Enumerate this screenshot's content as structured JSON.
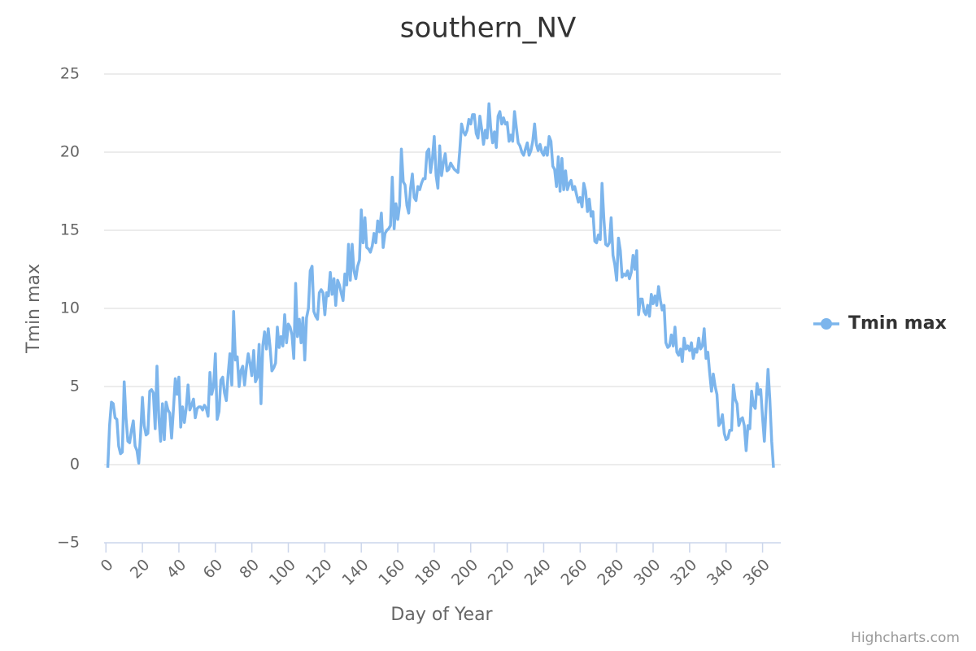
{
  "chart_data": {
    "type": "line",
    "title": "southern_NV",
    "x_label": "Day of Year",
    "y_label": "Tmin max",
    "credits": "Highcharts.com",
    "legend": "right",
    "grid": true,
    "xlim": [
      -1,
      370
    ],
    "xticks": [
      0,
      20,
      40,
      60,
      80,
      100,
      120,
      140,
      160,
      180,
      200,
      220,
      240,
      260,
      280,
      300,
      320,
      340,
      360
    ],
    "ylim": [
      -5,
      25
    ],
    "yticks": [
      {
        "value": -5,
        "label": "−5"
      },
      0,
      5,
      10,
      15,
      20,
      25
    ],
    "x": [
      1,
      2,
      3,
      4,
      5,
      6,
      7,
      8,
      9,
      10,
      11,
      12,
      13,
      14,
      15,
      16,
      17,
      18,
      19,
      20,
      21,
      22,
      23,
      24,
      25,
      26,
      27,
      28,
      29,
      30,
      31,
      32,
      33,
      34,
      35,
      36,
      37,
      38,
      39,
      40,
      41,
      42,
      43,
      44,
      45,
      46,
      47,
      48,
      49,
      50,
      51,
      52,
      53,
      54,
      55,
      56,
      57,
      58,
      59,
      60,
      61,
      62,
      63,
      64,
      65,
      66,
      67,
      68,
      69,
      70,
      71,
      72,
      73,
      74,
      75,
      76,
      77,
      78,
      79,
      80,
      81,
      82,
      83,
      84,
      85,
      86,
      87,
      88,
      89,
      90,
      91,
      92,
      93,
      94,
      95,
      96,
      97,
      98,
      99,
      100,
      101,
      102,
      103,
      104,
      105,
      106,
      107,
      108,
      109,
      110,
      111,
      112,
      113,
      114,
      115,
      116,
      117,
      118,
      119,
      120,
      121,
      122,
      123,
      124,
      125,
      126,
      127,
      128,
      129,
      130,
      131,
      132,
      133,
      134,
      135,
      136,
      137,
      138,
      139,
      140,
      141,
      142,
      143,
      144,
      145,
      146,
      147,
      148,
      149,
      150,
      151,
      152,
      153,
      154,
      155,
      156,
      157,
      158,
      159,
      160,
      161,
      162,
      163,
      164,
      165,
      166,
      167,
      168,
      169,
      170,
      171,
      172,
      173,
      174,
      175,
      176,
      177,
      178,
      179,
      180,
      181,
      182,
      183,
      184,
      185,
      186,
      187,
      188,
      189,
      190,
      191,
      192,
      193,
      194,
      195,
      196,
      197,
      198,
      199,
      200,
      201,
      202,
      203,
      204,
      205,
      206,
      207,
      208,
      209,
      210,
      211,
      212,
      213,
      214,
      215,
      216,
      217,
      218,
      219,
      220,
      221,
      222,
      223,
      224,
      225,
      226,
      227,
      228,
      229,
      230,
      231,
      232,
      233,
      234,
      235,
      236,
      237,
      238,
      239,
      240,
      241,
      242,
      243,
      244,
      245,
      246,
      247,
      248,
      249,
      250,
      251,
      252,
      253,
      254,
      255,
      256,
      257,
      258,
      259,
      260,
      261,
      262,
      263,
      264,
      265,
      266,
      267,
      268,
      269,
      270,
      271,
      272,
      273,
      274,
      275,
      276,
      277,
      278,
      279,
      280,
      281,
      282,
      283,
      284,
      285,
      286,
      287,
      288,
      289,
      290,
      291,
      292,
      293,
      294,
      295,
      296,
      297,
      298,
      299,
      300,
      301,
      302,
      303,
      304,
      305,
      306,
      307,
      308,
      309,
      310,
      311,
      312,
      313,
      314,
      315,
      316,
      317,
      318,
      319,
      320,
      321,
      322,
      323,
      324,
      325,
      326,
      327,
      328,
      329,
      330,
      331,
      332,
      333,
      334,
      335,
      336,
      337,
      338,
      339,
      340,
      341,
      342,
      343,
      344,
      345,
      346,
      347,
      348,
      349,
      350,
      351,
      352,
      353,
      354,
      355,
      356,
      357,
      358,
      359,
      360,
      361,
      362,
      363,
      364,
      365,
      366
    ],
    "series": [
      {
        "name": "Tmin max",
        "color": "#7cb5ec",
        "values": [
          -0.2,
          2.5,
          4.0,
          3.9,
          3.0,
          2.9,
          1.2,
          0.7,
          0.8,
          5.3,
          3.0,
          1.5,
          1.4,
          2.2,
          2.8,
          1.2,
          0.9,
          0.1,
          2.0,
          4.3,
          2.5,
          1.9,
          2.0,
          4.7,
          4.8,
          4.6,
          2.3,
          6.3,
          3.0,
          1.5,
          3.9,
          1.6,
          4.0,
          3.5,
          3.3,
          1.7,
          3.5,
          5.5,
          4.5,
          5.6,
          2.4,
          3.7,
          2.7,
          3.6,
          5.1,
          3.5,
          3.8,
          4.2,
          3.0,
          3.6,
          3.7,
          3.7,
          3.5,
          3.8,
          3.6,
          3.1,
          5.9,
          4.5,
          5.0,
          7.1,
          2.9,
          3.4,
          5.4,
          5.6,
          4.6,
          4.1,
          5.8,
          7.1,
          5.1,
          9.8,
          6.7,
          6.9,
          5.0,
          6.0,
          6.3,
          5.1,
          6.2,
          7.1,
          6.5,
          5.7,
          7.3,
          5.3,
          5.6,
          7.7,
          3.9,
          7.6,
          8.5,
          7.4,
          8.7,
          7.5,
          6.0,
          6.2,
          6.5,
          8.8,
          7.5,
          8.2,
          7.6,
          9.6,
          7.8,
          9.0,
          8.8,
          8.3,
          6.8,
          11.6,
          8.2,
          9.3,
          7.8,
          9.4,
          6.7,
          9.4,
          10.0,
          12.4,
          12.7,
          9.8,
          9.5,
          9.3,
          11.0,
          11.2,
          11.0,
          9.6,
          11.0,
          10.8,
          12.3,
          10.9,
          11.9,
          10.2,
          11.8,
          11.5,
          11.0,
          10.5,
          12.2,
          11.5,
          14.1,
          11.8,
          14.1,
          12.4,
          11.9,
          12.7,
          13.1,
          16.3,
          14.2,
          15.8,
          13.9,
          13.8,
          13.6,
          14.0,
          14.8,
          14.2,
          15.6,
          14.9,
          16.1,
          13.9,
          14.8,
          15.0,
          15.1,
          15.3,
          18.4,
          15.1,
          16.7,
          15.7,
          16.6,
          20.2,
          18.1,
          17.9,
          16.6,
          16.1,
          17.7,
          18.6,
          17.1,
          16.9,
          17.8,
          17.6,
          18.0,
          18.3,
          18.3,
          20.0,
          20.2,
          18.7,
          19.6,
          21.0,
          18.5,
          17.7,
          20.4,
          18.5,
          19.3,
          19.9,
          18.8,
          18.9,
          19.3,
          19.1,
          18.9,
          18.8,
          18.7,
          20.1,
          21.8,
          21.3,
          21.1,
          21.4,
          22.1,
          21.8,
          22.4,
          22.4,
          21.2,
          20.9,
          22.3,
          21.5,
          20.5,
          21.4,
          20.9,
          23.1,
          21.5,
          20.6,
          21.3,
          20.3,
          22.3,
          22.6,
          21.8,
          22.2,
          21.8,
          21.9,
          20.7,
          21.1,
          20.7,
          22.6,
          21.6,
          20.6,
          20.4,
          20.0,
          19.8,
          20.2,
          20.6,
          19.8,
          20.1,
          20.7,
          21.8,
          20.5,
          20.1,
          20.5,
          20.0,
          19.8,
          20.3,
          19.8,
          21.0,
          20.7,
          19.1,
          18.9,
          17.8,
          19.7,
          17.5,
          19.6,
          17.6,
          18.8,
          17.6,
          18.0,
          18.2,
          17.6,
          17.8,
          17.3,
          16.8,
          17.1,
          16.5,
          18.0,
          17.5,
          16.2,
          17.0,
          15.9,
          16.2,
          14.3,
          14.2,
          14.7,
          14.4,
          18.0,
          15.7,
          14.1,
          14.0,
          14.2,
          15.8,
          13.4,
          12.8,
          11.8,
          14.5,
          13.7,
          12.0,
          12.2,
          12.1,
          12.4,
          11.9,
          12.3,
          13.4,
          12.5,
          13.7,
          9.6,
          10.6,
          10.6,
          9.8,
          9.6,
          10.2,
          9.5,
          10.9,
          10.3,
          10.8,
          10.2,
          11.4,
          10.5,
          9.9,
          10.2,
          7.8,
          7.5,
          7.6,
          8.3,
          7.6,
          8.8,
          7.2,
          7.0,
          7.4,
          6.6,
          8.1,
          7.4,
          7.6,
          7.3,
          7.8,
          6.8,
          7.4,
          7.2,
          8.1,
          7.4,
          7.6,
          8.7,
          6.8,
          7.2,
          5.9,
          4.7,
          5.8,
          5.0,
          4.5,
          2.5,
          2.7,
          3.2,
          2.0,
          1.6,
          1.7,
          2.2,
          2.2,
          5.1,
          4.2,
          3.9,
          2.5,
          2.9,
          3.0,
          2.5,
          0.9,
          2.5,
          2.3,
          4.7,
          3.8,
          3.6,
          5.2,
          4.5,
          4.8,
          3.0,
          1.5,
          3.9,
          6.1,
          4.2,
          1.5,
          -0.2
        ]
      }
    ]
  }
}
